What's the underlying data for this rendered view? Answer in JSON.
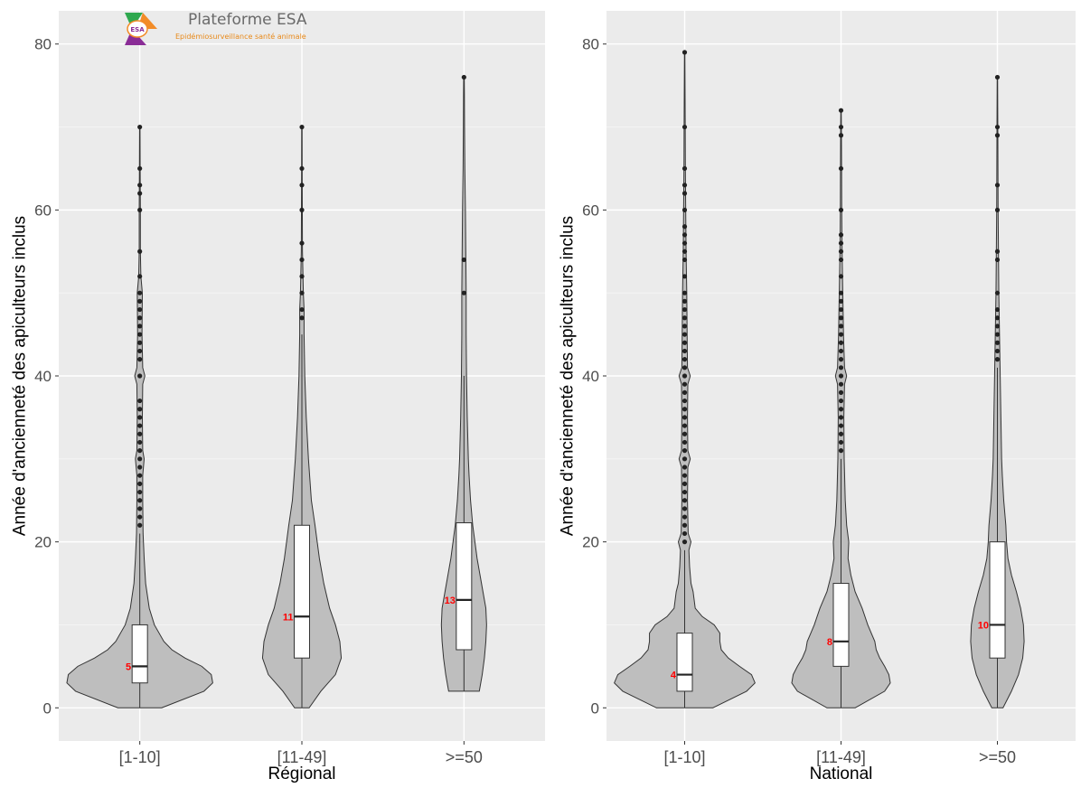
{
  "logo": {
    "title": "Plateforme ESA",
    "subtitle": "Epidémiosurveillance santé animale",
    "mark_text": "ESA"
  },
  "chart_data": [
    {
      "type": "violin",
      "xlabel": "Régional",
      "ylabel": "Année d'ancienneté des apiculteurs inclus",
      "ylim": [
        -4,
        84
      ],
      "yticks": [
        0,
        20,
        40,
        60,
        80
      ],
      "grid": true,
      "categories": [
        "[1-10]",
        "[11-49]",
        ">=50"
      ],
      "boxes": [
        {
          "category": "[1-10]",
          "q1": 3,
          "median": 5,
          "q3": 10,
          "whisker_low": 0,
          "whisker_high": 21,
          "median_label": "5"
        },
        {
          "category": "[11-49]",
          "q1": 6,
          "median": 11,
          "q3": 22,
          "whisker_low": 0,
          "whisker_high": 45,
          "median_label": "11"
        },
        {
          "category": ">=50",
          "q1": 7,
          "median": 13,
          "q3": 22.3,
          "whisker_low": 2,
          "whisker_high": 40,
          "median_label": "13"
        }
      ],
      "outliers": [
        [
          22,
          23,
          24,
          25,
          26,
          27,
          28,
          29,
          30,
          31,
          32,
          33,
          34,
          35,
          36,
          37,
          40,
          42,
          43,
          44,
          45,
          46,
          47,
          48,
          49,
          50,
          52,
          55,
          60,
          62,
          63,
          65,
          70
        ],
        [
          47,
          48,
          50,
          52,
          54,
          56,
          60,
          63,
          65,
          70
        ],
        [
          50,
          54,
          76
        ]
      ],
      "violins": [
        {
          "min": 0,
          "max": 70,
          "profile": [
            [
              0,
              0.3
            ],
            [
              2,
              0.88
            ],
            [
              3,
              1.0
            ],
            [
              4,
              0.98
            ],
            [
              5,
              0.85
            ],
            [
              6,
              0.62
            ],
            [
              7,
              0.44
            ],
            [
              8,
              0.33
            ],
            [
              10,
              0.2
            ],
            [
              12,
              0.13
            ],
            [
              15,
              0.08
            ],
            [
              18,
              0.06
            ],
            [
              21,
              0.045
            ],
            [
              25,
              0.04
            ],
            [
              28,
              0.04
            ],
            [
              30,
              0.06
            ],
            [
              31,
              0.04
            ],
            [
              35,
              0.035
            ],
            [
              39,
              0.04
            ],
            [
              40,
              0.07
            ],
            [
              41,
              0.04
            ],
            [
              45,
              0.03
            ],
            [
              50,
              0.035
            ],
            [
              52,
              0.015
            ],
            [
              55,
              0.008
            ],
            [
              60,
              0.008
            ],
            [
              65,
              0.005
            ],
            [
              70,
              0.003
            ]
          ]
        },
        {
          "min": 0,
          "max": 70,
          "profile": [
            [
              0,
              0.1
            ],
            [
              2,
              0.26
            ],
            [
              4,
              0.46
            ],
            [
              6,
              0.54
            ],
            [
              8,
              0.52
            ],
            [
              10,
              0.46
            ],
            [
              12,
              0.38
            ],
            [
              15,
              0.3
            ],
            [
              18,
              0.24
            ],
            [
              20,
              0.21
            ],
            [
              22,
              0.18
            ],
            [
              25,
              0.13
            ],
            [
              30,
              0.09
            ],
            [
              35,
              0.06
            ],
            [
              40,
              0.04
            ],
            [
              45,
              0.03
            ],
            [
              48,
              0.03
            ],
            [
              50,
              0.02
            ],
            [
              55,
              0.008
            ],
            [
              60,
              0.006
            ],
            [
              65,
              0.004
            ],
            [
              70,
              0.003
            ]
          ]
        },
        {
          "min": 2,
          "max": 76,
          "profile": [
            [
              2,
              0.21
            ],
            [
              4,
              0.25
            ],
            [
              6,
              0.28
            ],
            [
              8,
              0.3
            ],
            [
              10,
              0.31
            ],
            [
              12,
              0.3
            ],
            [
              14,
              0.26
            ],
            [
              16,
              0.22
            ],
            [
              18,
              0.18
            ],
            [
              20,
              0.15
            ],
            [
              22,
              0.12
            ],
            [
              25,
              0.09
            ],
            [
              28,
              0.07
            ],
            [
              30,
              0.06
            ],
            [
              35,
              0.045
            ],
            [
              40,
              0.035
            ],
            [
              45,
              0.03
            ],
            [
              50,
              0.03
            ],
            [
              55,
              0.025
            ],
            [
              60,
              0.02
            ],
            [
              65,
              0.012
            ],
            [
              70,
              0.008
            ],
            [
              74,
              0.006
            ],
            [
              76,
              0.004
            ]
          ]
        }
      ]
    },
    {
      "type": "violin",
      "xlabel": "National",
      "ylabel": "Année d'ancienneté des apiculteurs inclus",
      "ylim": [
        -4,
        84
      ],
      "yticks": [
        0,
        20,
        40,
        60,
        80
      ],
      "grid": true,
      "categories": [
        "[1-10]",
        "[11-49]",
        ">=50"
      ],
      "boxes": [
        {
          "category": "[1-10]",
          "q1": 2,
          "median": 4,
          "q3": 9,
          "whisker_low": 0,
          "whisker_high": 19,
          "median_label": "4"
        },
        {
          "category": "[11-49]",
          "q1": 5,
          "median": 8,
          "q3": 15,
          "whisker_low": 0,
          "whisker_high": 30,
          "median_label": "8"
        },
        {
          "category": ">=50",
          "q1": 6,
          "median": 10,
          "q3": 20,
          "whisker_low": 0,
          "whisker_high": 41,
          "median_label": "10"
        }
      ],
      "outliers": [
        [
          20,
          21,
          22,
          23,
          24,
          25,
          26,
          27,
          28,
          29,
          30,
          31,
          32,
          33,
          34,
          35,
          36,
          37,
          38,
          39,
          40,
          41,
          42,
          43,
          44,
          45,
          46,
          47,
          48,
          49,
          50,
          52,
          54,
          55,
          56,
          57,
          58,
          60,
          62,
          63,
          65,
          70,
          79
        ],
        [
          31,
          32,
          33,
          34,
          35,
          36,
          37,
          38,
          39,
          40,
          41,
          42,
          43,
          44,
          45,
          46,
          47,
          48,
          49,
          50,
          52,
          54,
          55,
          56,
          57,
          60,
          65,
          69,
          70,
          72
        ],
        [
          42,
          43,
          44,
          45,
          46,
          47,
          48,
          50,
          54,
          55,
          60,
          63,
          69,
          70,
          76
        ]
      ],
      "violins": [
        {
          "min": 0,
          "max": 79,
          "profile": [
            [
              0,
              0.4
            ],
            [
              2,
              0.88
            ],
            [
              3,
              1.0
            ],
            [
              4,
              0.95
            ],
            [
              5,
              0.78
            ],
            [
              6,
              0.62
            ],
            [
              7,
              0.52
            ],
            [
              8,
              0.5
            ],
            [
              9,
              0.5
            ],
            [
              10,
              0.42
            ],
            [
              11,
              0.25
            ],
            [
              12,
              0.15
            ],
            [
              14,
              0.12
            ],
            [
              15,
              0.09
            ],
            [
              17,
              0.07
            ],
            [
              19,
              0.06
            ],
            [
              20,
              0.09
            ],
            [
              21,
              0.05
            ],
            [
              25,
              0.04
            ],
            [
              29,
              0.045
            ],
            [
              30,
              0.08
            ],
            [
              31,
              0.045
            ],
            [
              35,
              0.04
            ],
            [
              39,
              0.045
            ],
            [
              40,
              0.08
            ],
            [
              41,
              0.04
            ],
            [
              45,
              0.035
            ],
            [
              50,
              0.03
            ],
            [
              55,
              0.02
            ],
            [
              60,
              0.015
            ],
            [
              65,
              0.01
            ],
            [
              70,
              0.008
            ],
            [
              79,
              0.003
            ]
          ]
        },
        {
          "min": 0,
          "max": 72,
          "profile": [
            [
              0,
              0.2
            ],
            [
              2,
              0.62
            ],
            [
              3,
              0.7
            ],
            [
              4,
              0.68
            ],
            [
              5,
              0.62
            ],
            [
              6,
              0.55
            ],
            [
              7,
              0.5
            ],
            [
              8,
              0.48
            ],
            [
              9,
              0.43
            ],
            [
              10,
              0.38
            ],
            [
              12,
              0.3
            ],
            [
              14,
              0.2
            ],
            [
              16,
              0.14
            ],
            [
              18,
              0.1
            ],
            [
              20,
              0.11
            ],
            [
              22,
              0.08
            ],
            [
              25,
              0.06
            ],
            [
              30,
              0.045
            ],
            [
              35,
              0.04
            ],
            [
              39,
              0.05
            ],
            [
              40,
              0.08
            ],
            [
              41,
              0.05
            ],
            [
              45,
              0.035
            ],
            [
              50,
              0.025
            ],
            [
              55,
              0.015
            ],
            [
              60,
              0.01
            ],
            [
              65,
              0.008
            ],
            [
              70,
              0.005
            ],
            [
              72,
              0.003
            ]
          ]
        },
        {
          "min": 0,
          "max": 76,
          "profile": [
            [
              0,
              0.08
            ],
            [
              2,
              0.2
            ],
            [
              4,
              0.3
            ],
            [
              6,
              0.36
            ],
            [
              8,
              0.38
            ],
            [
              10,
              0.37
            ],
            [
              12,
              0.33
            ],
            [
              14,
              0.27
            ],
            [
              16,
              0.2
            ],
            [
              18,
              0.15
            ],
            [
              20,
              0.13
            ],
            [
              22,
              0.12
            ],
            [
              25,
              0.09
            ],
            [
              28,
              0.07
            ],
            [
              30,
              0.06
            ],
            [
              35,
              0.05
            ],
            [
              40,
              0.04
            ],
            [
              45,
              0.03
            ],
            [
              50,
              0.02
            ],
            [
              55,
              0.015
            ],
            [
              60,
              0.01
            ],
            [
              70,
              0.006
            ],
            [
              76,
              0.003
            ]
          ]
        }
      ]
    }
  ]
}
